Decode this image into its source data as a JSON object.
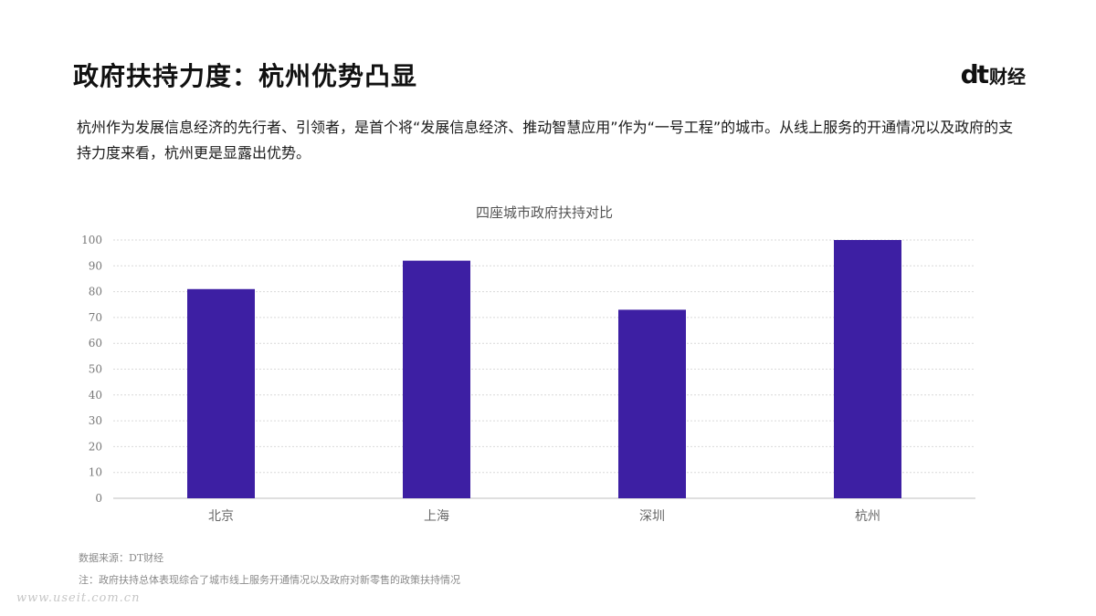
{
  "header": {
    "title": "政府扶持力度：杭州优势凸显",
    "logo": {
      "mark": "dt",
      "text": "财经"
    }
  },
  "intro": "杭州作为发展信息经济的先行者、引领者，是首个将“发展信息经济、推动智慧应用”作为“一号工程”的城市。从线上服务的开通情况以及政府的支持力度来看，杭州更是显露出优势。",
  "chart_data": {
    "type": "bar",
    "title": "四座城市政府扶持对比",
    "categories": [
      "北京",
      "上海",
      "深圳",
      "杭州"
    ],
    "values": [
      81,
      92,
      73,
      100
    ],
    "yticks": [
      0,
      10,
      20,
      30,
      40,
      50,
      60,
      70,
      80,
      90,
      100
    ],
    "ylim": [
      0,
      100
    ],
    "xlabel": "",
    "ylabel": "",
    "grid": true,
    "legend": "none",
    "bar_color": "#3d1fa3"
  },
  "footer": {
    "source": "数据来源：DT财经",
    "note": "注：政府扶持总体表现综合了城市线上服务开通情况以及政府对新零售的政策扶持情况",
    "watermark": "www.useit.com.cn"
  }
}
